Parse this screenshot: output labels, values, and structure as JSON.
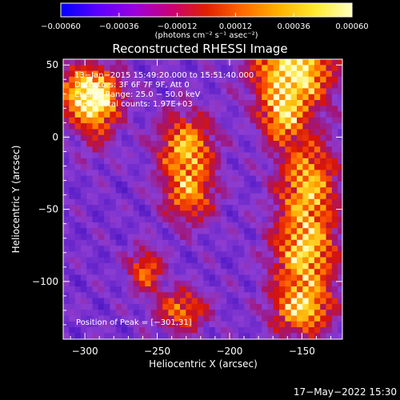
{
  "chart_data": {
    "type": "heatmap",
    "title": "Reconstructed RHESSI Image",
    "xlabel": "Heliocentric X (arcsec)",
    "ylabel": "Heliocentric Y (arcsec)",
    "xlim": [
      -315,
      -122
    ],
    "ylim": [
      -140,
      54
    ],
    "x_ticks": [
      -300,
      -250,
      -200,
      -150
    ],
    "x_tick_labels": [
      "−300",
      "−250",
      "−200",
      "−150"
    ],
    "y_ticks": [
      50,
      0,
      -50,
      -100
    ],
    "y_tick_labels": [
      "50",
      "0",
      "−50",
      "−100"
    ],
    "colorbar": {
      "range": [
        -0.0006,
        0.0006
      ],
      "ticks": [
        -0.0006,
        -0.00036,
        -0.00012,
        0.00012,
        0.00036,
        0.0006
      ],
      "tick_labels": [
        "−0.00060",
        "−0.00036",
        "−0.00012",
        "0.00012",
        "0.00036",
        "0.00060"
      ],
      "unit_label": "(photons cm⁻² s⁻¹ asec⁻²)",
      "colors": [
        "#0000ff",
        "#5a00ff",
        "#9b00e0",
        "#c8007a",
        "#e02000",
        "#ff6a00",
        "#ffb200",
        "#ffea30",
        "#ffffc0"
      ]
    },
    "annotations": [
      "13−Jan−2015 15:49:20.000 to 15:51:40.000",
      "Detectors: 3F 6F 7F 9F, Att 0",
      "Energy Range: 25.0 − 50.0 keV",
      "Clean    Total counts: 1.97E+03"
    ],
    "peak_label": "Position of Peak = [−301,31]",
    "peak_position": [
      -301,
      31
    ],
    "timestamp": "17−May−2022 15:30",
    "hot_regions": [
      {
        "x": -300,
        "y": 32,
        "sx": 14,
        "sy": 12,
        "a": 0.85
      },
      {
        "x": -294,
        "y": 20,
        "sx": 10,
        "sy": 18,
        "a": 0.45
      },
      {
        "x": -158,
        "y": 48,
        "sx": 18,
        "sy": 18,
        "a": 1.0
      },
      {
        "x": -166,
        "y": 15,
        "sx": 10,
        "sy": 12,
        "a": 0.6
      },
      {
        "x": -148,
        "y": -30,
        "sx": 14,
        "sy": 22,
        "a": 0.7
      },
      {
        "x": -150,
        "y": -80,
        "sx": 15,
        "sy": 20,
        "a": 0.75
      },
      {
        "x": -152,
        "y": -118,
        "sx": 14,
        "sy": 12,
        "a": 0.7
      },
      {
        "x": -232,
        "y": -5,
        "sx": 13,
        "sy": 16,
        "a": 0.7
      },
      {
        "x": -230,
        "y": -38,
        "sx": 12,
        "sy": 14,
        "a": 0.55
      },
      {
        "x": -260,
        "y": -90,
        "sx": 8,
        "sy": 10,
        "a": 0.55
      },
      {
        "x": -235,
        "y": -118,
        "sx": 12,
        "sy": 10,
        "a": 0.55
      }
    ]
  }
}
